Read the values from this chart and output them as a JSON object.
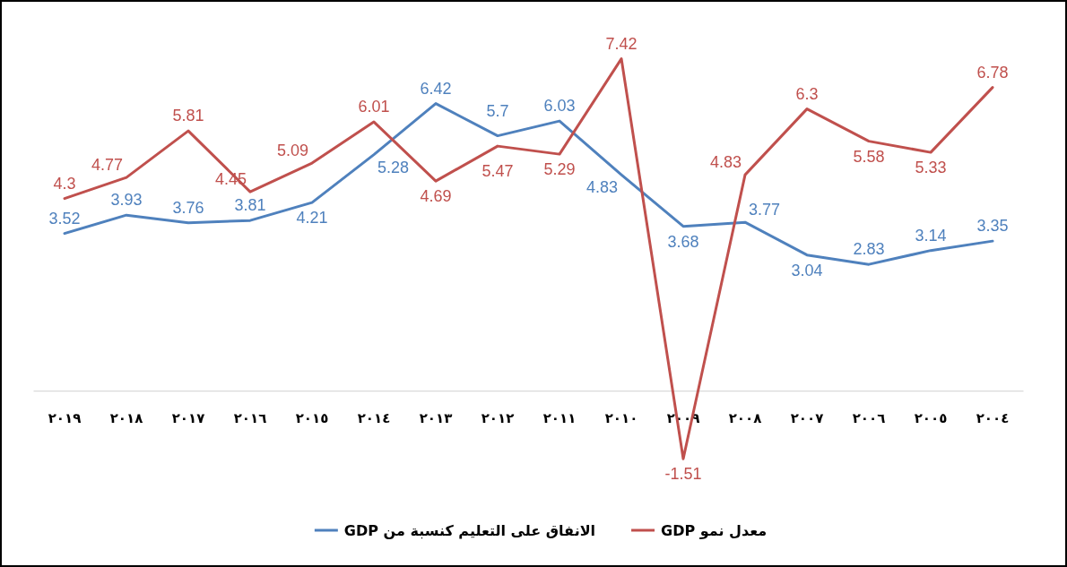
{
  "chart_data": {
    "type": "line",
    "categories": [
      "٢٠١٩",
      "٢٠١٨",
      "٢٠١٧",
      "٢٠١٦",
      "٢٠١٥",
      "٢٠١٤",
      "٢٠١٣",
      "٢٠١٢",
      "٢٠١١",
      "٢٠١٠",
      "٢٠٠٩",
      "٢٠٠٨",
      "٢٠٠٧",
      "٢٠٠٦",
      "٢٠٠٥",
      "٢٠٠٤"
    ],
    "series": [
      {
        "name": "الانفاق على التعليم كنسبة من GDP",
        "color": "#4f81bd",
        "values": [
          3.52,
          3.93,
          3.76,
          3.81,
          4.21,
          5.28,
          6.42,
          5.7,
          6.03,
          4.83,
          3.68,
          3.77,
          3.04,
          2.83,
          3.14,
          3.35
        ]
      },
      {
        "name": "معدل نمو GDP",
        "color": "#c0504d",
        "values": [
          4.3,
          4.77,
          5.81,
          4.45,
          5.09,
          6.01,
          4.69,
          5.47,
          5.29,
          7.42,
          -1.51,
          4.83,
          6.3,
          5.58,
          5.33,
          6.78
        ]
      }
    ],
    "data_labels": true,
    "legend": "bottom",
    "tick_labels": "x",
    "marker": "none",
    "line_style": "solid"
  }
}
